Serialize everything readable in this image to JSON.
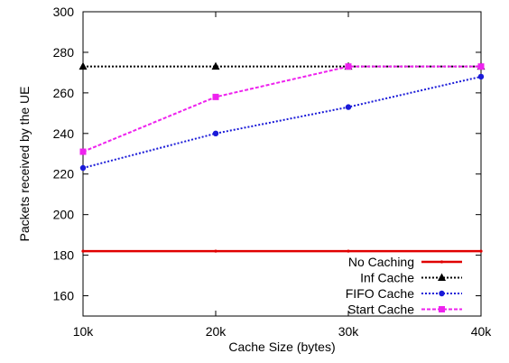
{
  "chart_data": {
    "type": "line",
    "title": "",
    "xlabel": "Cache Size (bytes)",
    "ylabel": "Packets received by the UE",
    "x": [
      10000,
      20000,
      30000,
      40000
    ],
    "x_tick_labels": [
      "10k",
      "20k",
      "30k",
      "40k"
    ],
    "xlim": [
      10000,
      40000
    ],
    "ylim": [
      150,
      300
    ],
    "y_ticks": [
      160,
      180,
      200,
      220,
      240,
      260,
      280,
      300
    ],
    "grid": false,
    "legend_position": "bottom-right",
    "series": [
      {
        "name": "No Caching",
        "values": [
          182,
          182,
          182,
          182
        ],
        "color": "#e00000",
        "style": "solid",
        "marker": "dot"
      },
      {
        "name": "Inf Cache",
        "values": [
          273,
          273,
          273,
          273
        ],
        "color": "#000000",
        "style": "dotted",
        "marker": "triangle"
      },
      {
        "name": "FIFO Cache",
        "values": [
          223,
          240,
          253,
          268
        ],
        "color": "#1a1ad8",
        "style": "dotted",
        "marker": "circle"
      },
      {
        "name": "Start Cache",
        "values": [
          231,
          258,
          273,
          273
        ],
        "color": "#ee22ee",
        "style": "dashed",
        "marker": "square"
      }
    ]
  }
}
